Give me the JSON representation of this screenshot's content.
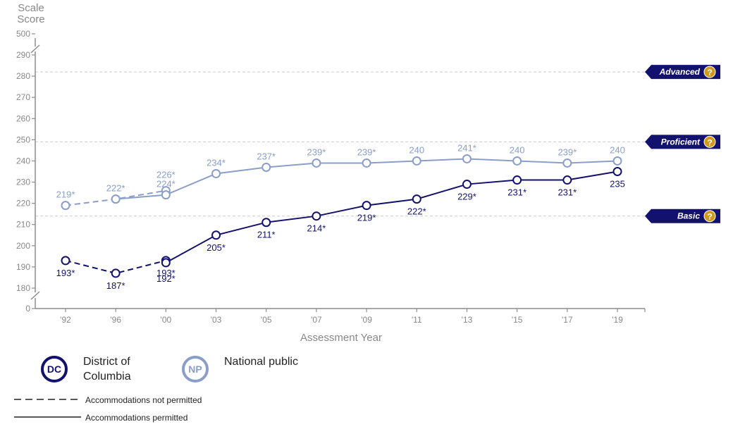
{
  "chart_data": {
    "type": "line",
    "ylabel_line1": "Scale",
    "ylabel_line2": "Score",
    "xlabel": "Assessment Year",
    "x_tick_labels": [
      "'92",
      "'96",
      "'00",
      "'03",
      "'05",
      "'07",
      "'09",
      "'11",
      "'13",
      "'15",
      "'17",
      "'19"
    ],
    "y_tick_labels": [
      "0",
      "180",
      "190",
      "200",
      "210",
      "220",
      "230",
      "240",
      "250",
      "260",
      "270",
      "280",
      "290",
      "500"
    ],
    "ylim": [
      180,
      290
    ],
    "axis_breaks": "between 0 and 180, and between 290 and 500",
    "achievement_levels": [
      {
        "name": "Advanced",
        "score": 282
      },
      {
        "name": "Proficient",
        "score": 249
      },
      {
        "name": "Basic",
        "score": 214
      }
    ],
    "series": [
      {
        "name": "National public",
        "abbr": "NP",
        "color": "#8a9ec9",
        "not_permitted": {
          "x": [
            "'92",
            "'96",
            "'00"
          ],
          "y": [
            219,
            222,
            226
          ],
          "labels": [
            "219*",
            "222*",
            "226*"
          ]
        },
        "permitted": {
          "x": [
            "'96",
            "'00",
            "'03",
            "'05",
            "'07",
            "'09",
            "'11",
            "'13",
            "'15",
            "'17",
            "'19"
          ],
          "y": [
            222,
            224,
            234,
            237,
            239,
            239,
            240,
            241,
            240,
            239,
            240
          ],
          "labels": [
            "",
            "224*",
            "234*",
            "237*",
            "239*",
            "239*",
            "240",
            "241*",
            "240",
            "239*",
            "240"
          ]
        }
      },
      {
        "name": "District of Columbia",
        "abbr": "DC",
        "color": "#12126e",
        "not_permitted": {
          "x": [
            "'92",
            "'96",
            "'00"
          ],
          "y": [
            193,
            187,
            193
          ],
          "labels": [
            "193*",
            "187*",
            "193*"
          ]
        },
        "permitted": {
          "x": [
            "'00",
            "'03",
            "'05",
            "'07",
            "'09",
            "'11",
            "'13",
            "'15",
            "'17",
            "'19"
          ],
          "y": [
            192,
            205,
            211,
            214,
            219,
            222,
            229,
            231,
            231,
            235
          ],
          "labels": [
            "192*",
            "205*",
            "211*",
            "214*",
            "219*",
            "222*",
            "229*",
            "231*",
            "231*",
            "235"
          ]
        }
      }
    ]
  },
  "legend": {
    "dc_abbr": "DC",
    "dc_label": "District of Columbia",
    "np_abbr": "NP",
    "np_label": "National public",
    "dashed_label": "Accommodations not permitted",
    "solid_label": "Accommodations permitted"
  },
  "colors": {
    "dc": "#12126e",
    "np": "#8a9ec9",
    "axis": "#8c8c8c",
    "tick_text": "#888888",
    "level_tag": "#12126e",
    "help_badge": "#d19a1c"
  },
  "icons": {
    "help": "question-mark-icon"
  }
}
